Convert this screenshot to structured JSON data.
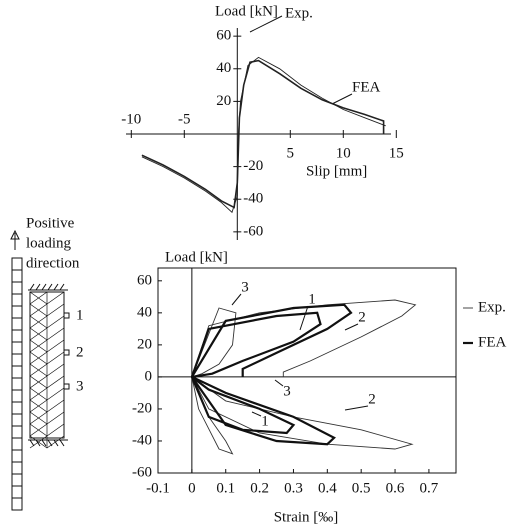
{
  "chart_data": [
    {
      "type": "line",
      "y_label": "Load [kN]",
      "x_label": "Slip [mm]",
      "xlim": [
        -10.5,
        14.5
      ],
      "xticks": [
        -10,
        -5,
        5,
        10,
        15
      ],
      "ylim": [
        -65,
        65
      ],
      "yticks": [
        -60,
        -40,
        -20,
        20,
        40,
        60
      ],
      "annotations": [
        "Exp.",
        "FEA"
      ],
      "series": [
        {
          "name": "Exp.",
          "color": "#222222",
          "x": [
            -9,
            -7,
            -5,
            -3,
            -1.5,
            -0.5,
            0,
            0.1,
            0.3,
            1,
            2,
            4,
            6,
            8,
            10,
            12,
            14
          ],
          "values": [
            -14,
            -20,
            -27,
            -35,
            -42,
            -48,
            -38,
            0,
            20,
            42,
            47,
            40,
            30,
            22,
            15,
            10,
            5
          ]
        },
        {
          "name": "FEA",
          "color": "#222222",
          "x": [
            -9,
            -7,
            -5,
            -3,
            -1.5,
            -0.3,
            0,
            0.2,
            0.6,
            1.2,
            2,
            4,
            6,
            8,
            10,
            12,
            13.8,
            13.8
          ],
          "values": [
            -13,
            -19,
            -26,
            -34,
            -41,
            -45,
            -30,
            10,
            30,
            44,
            45,
            37,
            28,
            21,
            16,
            12,
            8,
            0
          ]
        }
      ]
    },
    {
      "type": "hysteresis",
      "y_label": "Load [kN]",
      "x_label": "Strain [‰]",
      "xlim": [
        -0.1,
        0.78
      ],
      "xticks": [
        -0.1,
        0,
        0.1,
        0.2,
        0.3,
        0.4,
        0.5,
        0.6,
        0.7
      ],
      "ylim": [
        -60,
        68
      ],
      "yticks": [
        -60,
        -40,
        -20,
        0,
        20,
        40,
        60
      ],
      "annotations": [
        "3",
        "1",
        "2",
        "3",
        "2",
        "1"
      ],
      "series": [
        {
          "name": "Exp.",
          "color": "#333333",
          "x": [
            0,
            0.05,
            0.2,
            0.4,
            0.6,
            0.66,
            0.62,
            0.5,
            0.35,
            0.27,
            0.27,
            null,
            0,
            0.08,
            0.13,
            0.12,
            0.08,
            0.03,
            0,
            null,
            0,
            0.1,
            0.3,
            0.5,
            0.65,
            0.6,
            0.4,
            0.2,
            0.05,
            0,
            null,
            0,
            0.05,
            0.1,
            0.12,
            0.08,
            0.02,
            0
          ],
          "values": [
            0,
            32,
            40,
            45,
            48,
            45,
            38,
            25,
            10,
            3,
            0,
            null,
            0,
            43,
            40,
            20,
            8,
            2,
            0,
            null,
            0,
            -15,
            -25,
            -33,
            -42,
            -45,
            -42,
            -35,
            -20,
            0,
            null,
            0,
            -25,
            -40,
            -48,
            -45,
            -20,
            0
          ]
        },
        {
          "name": "FEA",
          "color": "#111111",
          "x": [
            0,
            0.1,
            0.3,
            0.45,
            0.47,
            0.4,
            0.25,
            0.15,
            0.15,
            null,
            0,
            0.05,
            0.25,
            0.37,
            0.38,
            0.3,
            0.15,
            0.06,
            0,
            null,
            0,
            0.1,
            0.3,
            0.42,
            0.4,
            0.25,
            0.1,
            0,
            null,
            0,
            0.05,
            0.2,
            0.3,
            0.28,
            0.15,
            0.05,
            0
          ],
          "values": [
            0,
            35,
            43,
            45,
            40,
            30,
            15,
            5,
            0,
            null,
            0,
            30,
            38,
            40,
            33,
            22,
            10,
            2,
            0,
            null,
            0,
            -10,
            -25,
            -38,
            -42,
            -40,
            -30,
            0,
            null,
            0,
            -8,
            -20,
            -30,
            -35,
            -33,
            -25,
            0
          ]
        }
      ]
    }
  ],
  "diagram": {
    "loading_label": [
      "Positive",
      "loading",
      "direction"
    ],
    "gauges": [
      "1",
      "2",
      "3"
    ]
  }
}
